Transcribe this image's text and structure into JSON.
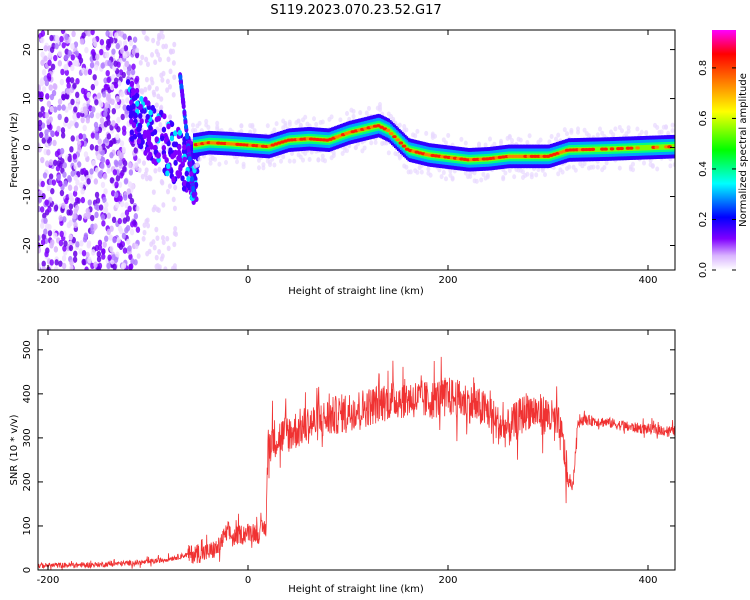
{
  "title": "S119.2023.070.23.52.G17",
  "colors": {
    "snr_line": "#f03232",
    "axis": "#000000"
  },
  "chart_data": [
    {
      "type": "heatmap",
      "xlabel": "Height of straight line (km)",
      "ylabel": "Frequency (Hz)",
      "xlim": [
        -210,
        427
      ],
      "ylim": [
        -25,
        24
      ],
      "x_ticks": [
        -200,
        0,
        200,
        400
      ],
      "y_ticks": [
        -20,
        -10,
        0,
        10,
        20
      ],
      "colorbar": {
        "label": "Normalized spectral amplitude",
        "range": [
          0,
          0.95
        ],
        "ticks": [
          "0.0",
          "0.2",
          "0.4",
          "0.6",
          "0.8"
        ],
        "colormap": [
          "#ffffff",
          "#8000ff",
          "#0000ff",
          "#00ffff",
          "#00ff00",
          "#ffff00",
          "#ff8000",
          "#ff0000",
          "#ff00ff"
        ]
      },
      "ridge": {
        "height_km": [
          -55,
          -40,
          -20,
          0,
          20,
          40,
          60,
          80,
          100,
          120,
          130,
          140,
          160,
          180,
          200,
          220,
          240,
          260,
          300,
          320,
          360,
          400,
          427
        ],
        "frequency_hz": [
          0.5,
          1.0,
          0.8,
          0.5,
          0.2,
          1.5,
          1.8,
          1.5,
          3.0,
          4.0,
          4.5,
          3.5,
          -0.5,
          -1.5,
          -2.0,
          -2.5,
          -2.3,
          -1.8,
          -1.8,
          -0.5,
          -0.3,
          0.0,
          0.2
        ]
      }
    },
    {
      "type": "line",
      "xlabel": "Height of straight line (km)",
      "ylabel": "SNR (10 * v/v)",
      "xlim": [
        -210,
        427
      ],
      "ylim": [
        0,
        545
      ],
      "x_ticks": [
        -200,
        0,
        200,
        400
      ],
      "y_ticks": [
        0,
        100,
        200,
        300,
        400,
        500
      ],
      "series": [
        {
          "x": [
            -210,
            -150,
            -100,
            -80,
            -60,
            -40,
            -30,
            -25,
            -20,
            -15,
            -10,
            0,
            5,
            10,
            15,
            18,
            20,
            25,
            30,
            40,
            50,
            60,
            80,
            100,
            120,
            140,
            160,
            180,
            200,
            220,
            240,
            250,
            260,
            280,
            300,
            310,
            315,
            320,
            325,
            330,
            340,
            360,
            380,
            400,
            427
          ],
          "y": [
            10,
            12,
            18,
            25,
            35,
            40,
            50,
            70,
            90,
            70,
            80,
            85,
            90,
            80,
            95,
            95,
            280,
            300,
            300,
            310,
            320,
            330,
            345,
            360,
            370,
            385,
            390,
            385,
            395,
            380,
            360,
            330,
            320,
            365,
            350,
            330,
            290,
            200,
            190,
            340,
            340,
            335,
            325,
            320,
            315
          ]
        }
      ]
    }
  ]
}
